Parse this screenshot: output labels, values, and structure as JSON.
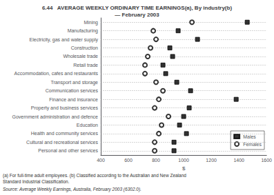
{
  "chart_data": {
    "type": "scatter",
    "title": "6.44   AVERAGE WEEKLY ORDINARY TIME EARNINGS(a), By industry(b)",
    "subtitle": "— February 2003",
    "xlabel": "$",
    "orientation": "horizontal",
    "categories": [
      "Mining",
      "Manufacturing",
      "Electricity, gas and water supply",
      "Construction",
      "Wholesale trade",
      "Retail trade",
      "Accommodation, cafes and restaurants",
      "Transport and storage",
      "Communication services",
      "Finance and insurance",
      "Property and business services",
      "Government administration and defence",
      "Education",
      "Health and community services",
      "Cultural and recreational services",
      "Personal and other services"
    ],
    "series": [
      {
        "name": "Males",
        "color": "#000000",
        "marker": "square",
        "values": [
          1460,
          960,
          1100,
          900,
          920,
          850,
          870,
          950,
          1050,
          1380,
          1040,
          1000,
          970,
          1020,
          930,
          930
        ]
      },
      {
        "name": "Females",
        "color": "#000000",
        "marker": "open_circle",
        "values": [
          1060,
          780,
          800,
          760,
          740,
          720,
          720,
          800,
          850,
          820,
          790,
          890,
          840,
          820,
          790,
          790
        ]
      }
    ],
    "xlim": [
      400,
      1600
    ],
    "xticks": [
      400,
      600,
      800,
      1000,
      1200,
      1400,
      1600
    ],
    "grid": true,
    "legend": "lower right",
    "annotations": [
      "(a) For full-time adult employees. (b) Classified according to the Australian and New Zealand",
      "Standard Industrial Classification.",
      "Source: Average Weekly Earnings, Australia, February 2003 (6302.0)."
    ]
  }
}
